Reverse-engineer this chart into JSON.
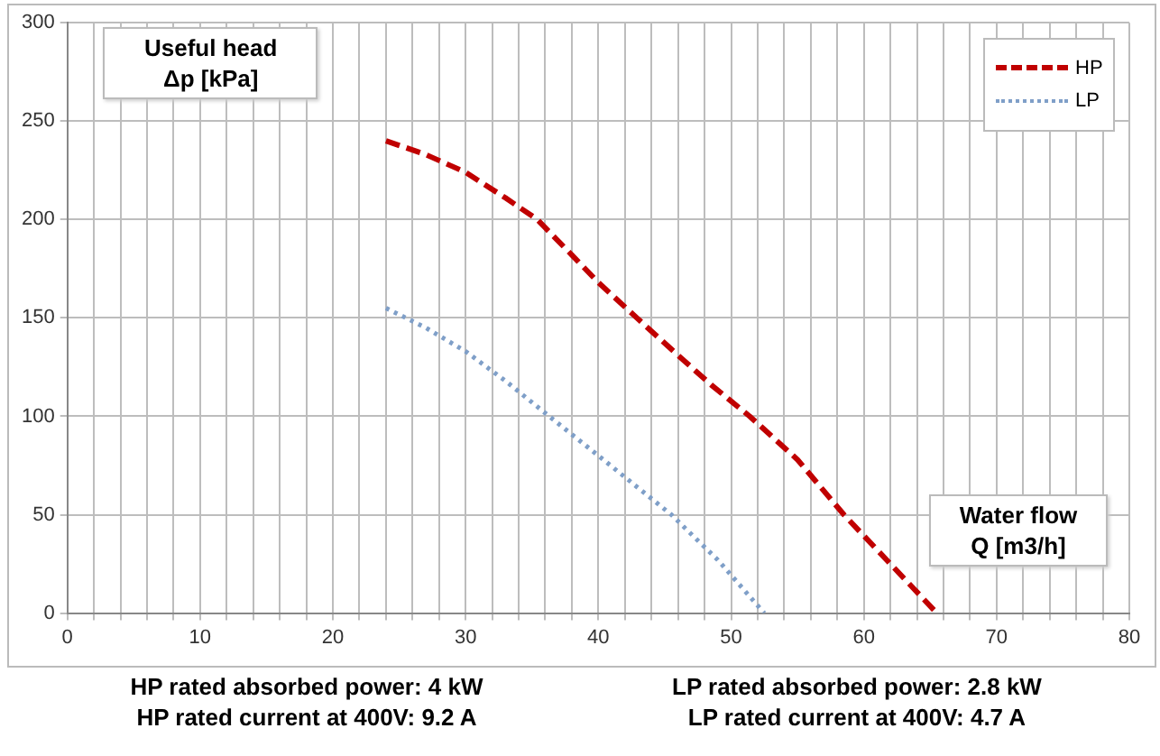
{
  "chart_data": {
    "type": "line",
    "ylabel": "Useful head\nΔp [kPa]",
    "xlabel": "Water flow\nQ [m3/h]",
    "xlim": [
      0,
      80
    ],
    "xticks": [
      0,
      {
        "value": 2,
        "label": null
      },
      {
        "value": 4,
        "label": null
      },
      {
        "value": 6,
        "label": null
      },
      {
        "value": 8,
        "label": null
      },
      10,
      {
        "value": 12,
        "label": null
      },
      {
        "value": 14,
        "label": null
      },
      {
        "value": 16,
        "label": null
      },
      {
        "value": 18,
        "label": null
      },
      20,
      {
        "value": 22,
        "label": null
      },
      {
        "value": 24,
        "label": null
      },
      {
        "value": 26,
        "label": null
      },
      {
        "value": 28,
        "label": null
      },
      30,
      {
        "value": 32,
        "label": null
      },
      {
        "value": 34,
        "label": null
      },
      {
        "value": 36,
        "label": null
      },
      {
        "value": 38,
        "label": null
      },
      40,
      {
        "value": 42,
        "label": null
      },
      {
        "value": 44,
        "label": null
      },
      {
        "value": 46,
        "label": null
      },
      {
        "value": 48,
        "label": null
      },
      50,
      {
        "value": 52,
        "label": null
      },
      {
        "value": 54,
        "label": null
      },
      {
        "value": 56,
        "label": null
      },
      {
        "value": 58,
        "label": null
      },
      60,
      {
        "value": 62,
        "label": null
      },
      {
        "value": 64,
        "label": null
      },
      {
        "value": 66,
        "label": null
      },
      {
        "value": 68,
        "label": null
      },
      70,
      {
        "value": 72,
        "label": null
      },
      {
        "value": 74,
        "label": null
      },
      {
        "value": 76,
        "label": null
      },
      {
        "value": 78,
        "label": null
      },
      80
    ],
    "ylim": [
      0,
      300
    ],
    "yticks": [
      0,
      50,
      100,
      150,
      200,
      250,
      300
    ],
    "grid": true,
    "legend": "top right",
    "marker": "none",
    "series": [
      {
        "name": "HP",
        "color": "#c00000",
        "line_style": "dashed",
        "x": [
          24,
          27,
          30,
          33,
          35.4,
          38,
          40,
          42.9,
          46,
          48.5,
          51.4,
          55,
          58.5,
          62,
          65.5
        ],
        "values": [
          240,
          233,
          224,
          211,
          200,
          182,
          168,
          150,
          131,
          116,
          100,
          78,
          50,
          25,
          0
        ]
      },
      {
        "name": "LP",
        "color": "#7f9fc8",
        "line_style": "dotted",
        "x": [
          24,
          27,
          30,
          33,
          36.3,
          40,
          45.5,
          49,
          52.5
        ],
        "values": [
          155,
          145,
          133,
          118,
          100,
          80,
          50,
          27,
          0
        ]
      }
    ],
    "annotations": [
      "HP rated absorbed power: 4 kW\nHP rated current at 400V: 9.2 A",
      "LP rated absorbed power: 2.8 kW\nLP rated current at 400V: 4.7 A"
    ]
  }
}
